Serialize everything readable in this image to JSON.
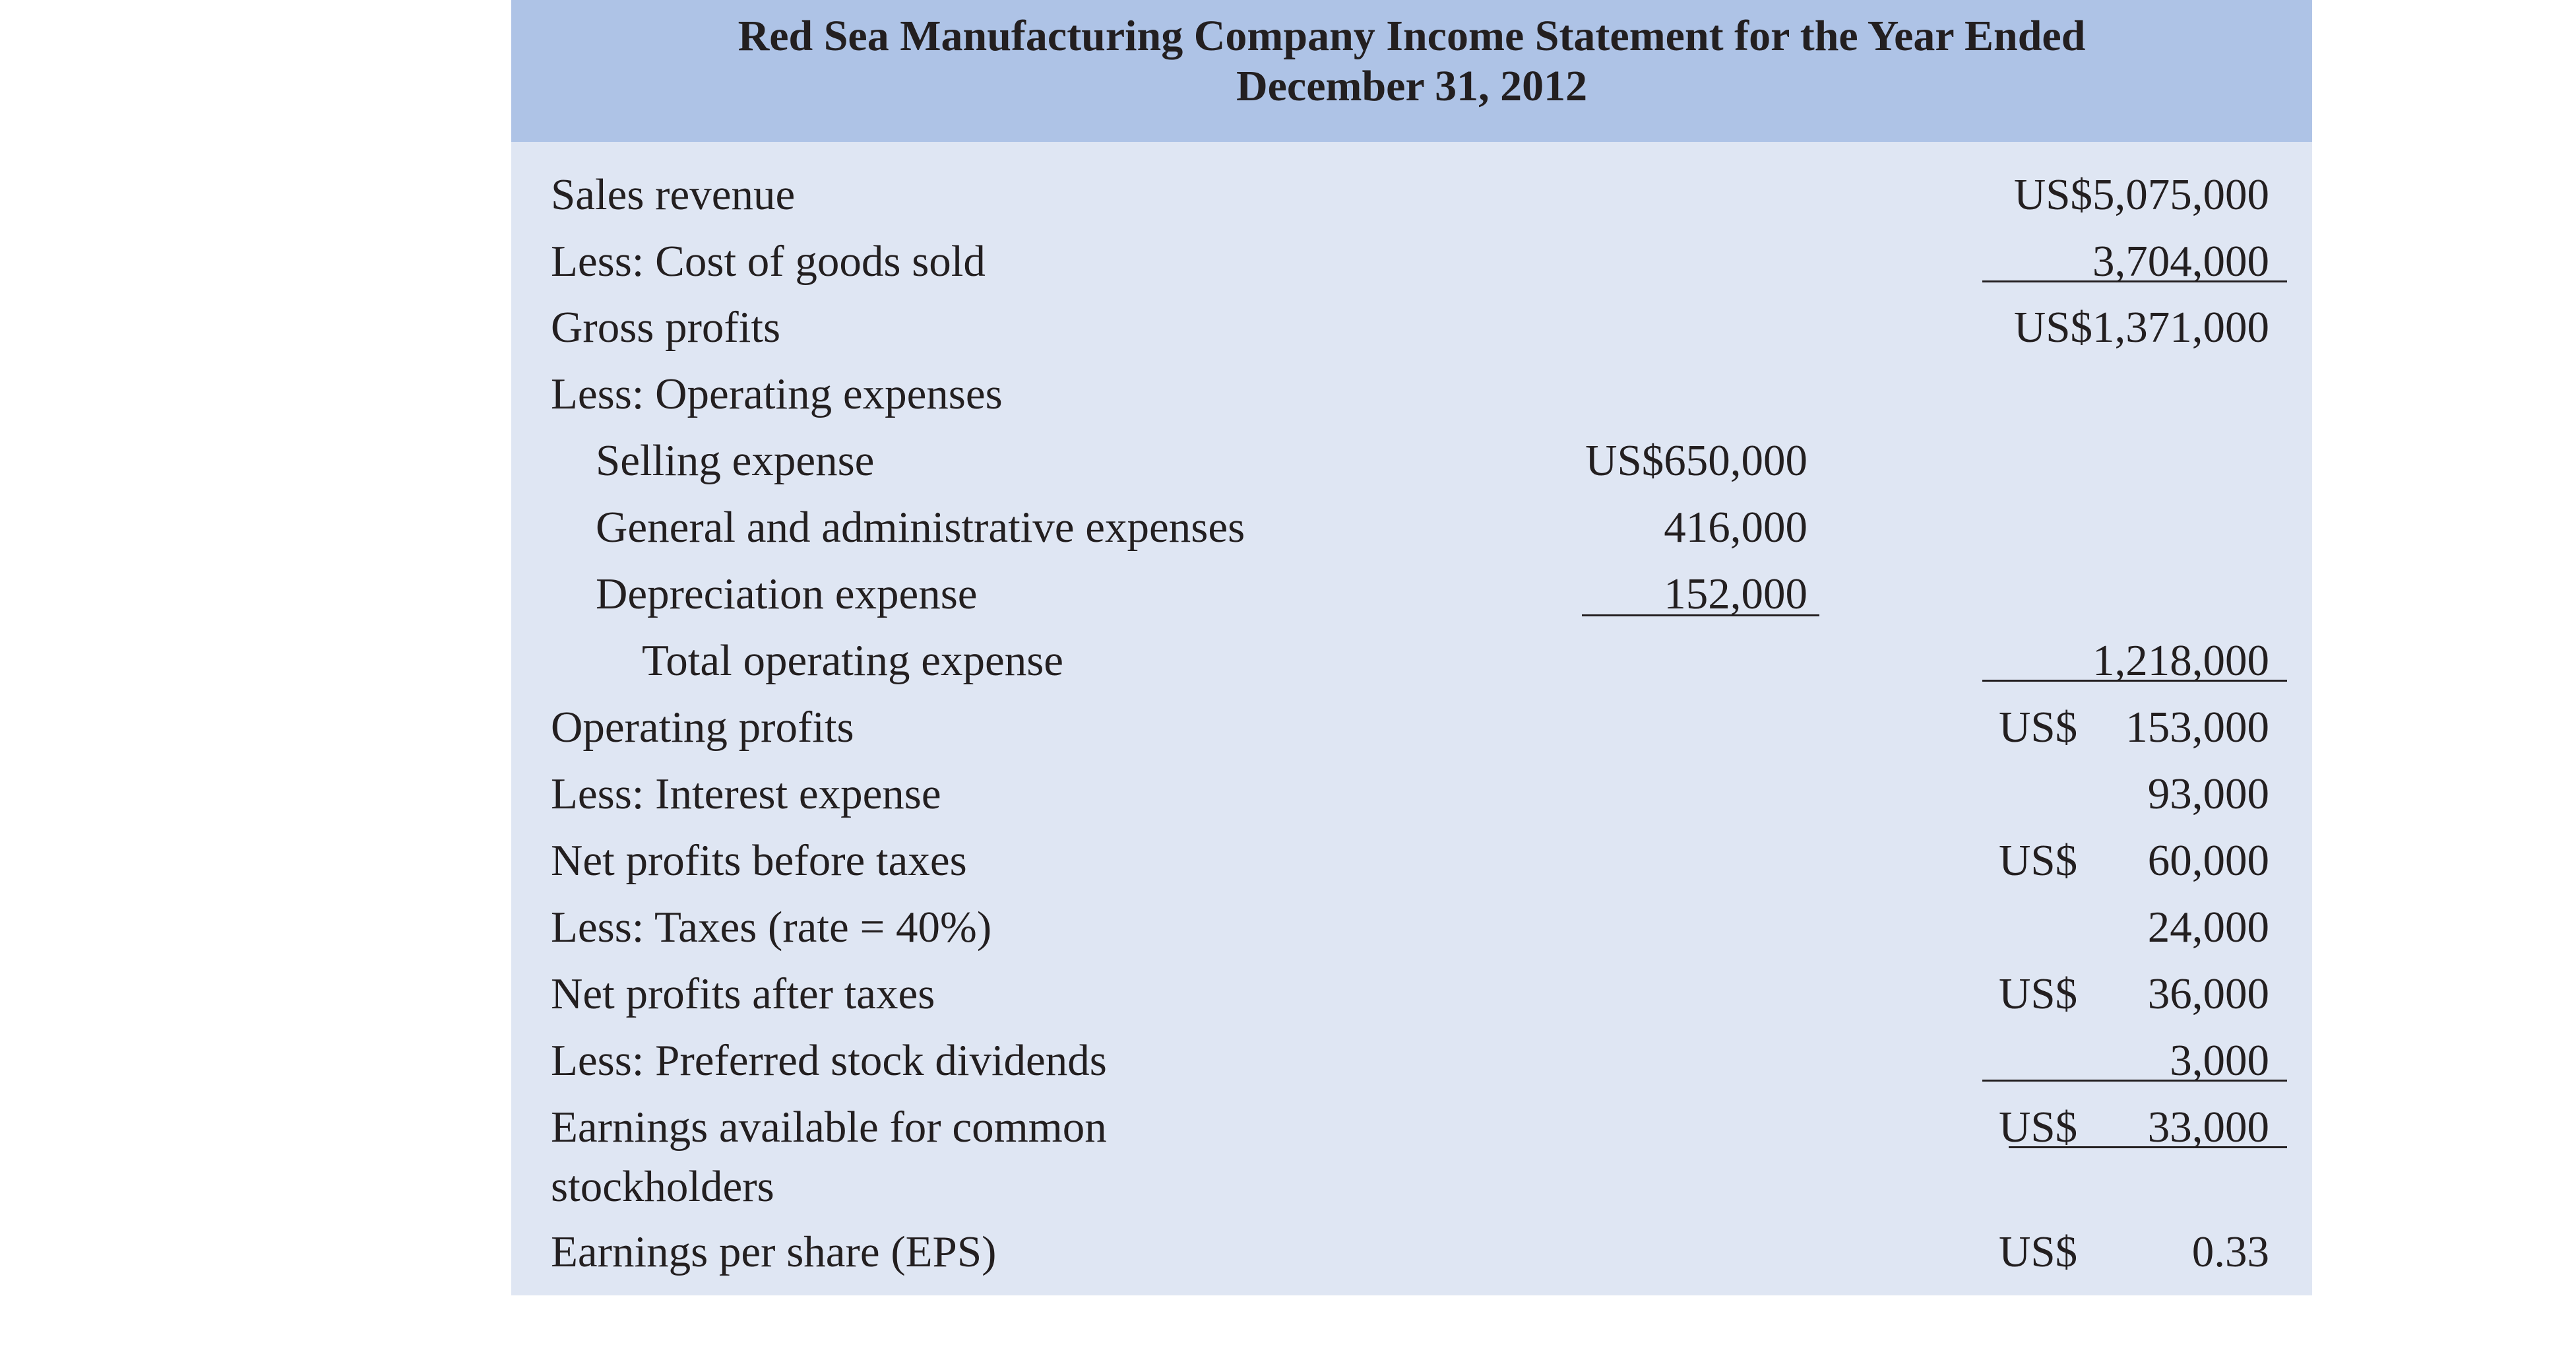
{
  "title_line1": "Red Sea Manufacturing Company Income Statement for the Year Ended",
  "title_line2": "December  31,  2012",
  "rows": [
    {
      "label": "Sales revenue",
      "right_cur": "",
      "right": "US$5,075,000"
    },
    {
      "label": "Less: Cost of goods sold",
      "right_cur": "",
      "right": "3,704,000"
    },
    {
      "label": "Gross  profits",
      "right_cur": "",
      "right": "US$1,371,000"
    },
    {
      "label": "Less: Operating expenses"
    },
    {
      "label": "Selling expense",
      "mid": "US$650,000"
    },
    {
      "label": "General  and  administrative  expenses",
      "mid": "416,000"
    },
    {
      "label": "Depreciation  expense",
      "mid": "152,000"
    },
    {
      "label": "Total operating expense",
      "right_cur": "",
      "right": "1,218,000"
    },
    {
      "label": "Operating profits",
      "right_cur": "US$",
      "right": "153,000"
    },
    {
      "label": "Less: Interest expense",
      "right_cur": "",
      "right": "93,000"
    },
    {
      "label": "Net profits before taxes",
      "right_cur": "US$",
      "right": "60,000"
    },
    {
      "label": "Less: Taxes (rate = 40%)",
      "right_cur": "",
      "right": "24,000"
    },
    {
      "label": "Net profits after taxes",
      "right_cur": "US$",
      "right": "36,000"
    },
    {
      "label": "Less: Preferred stock dividends",
      "right_cur": "",
      "right": "3,000"
    },
    {
      "label": "Earnings available for common stockholders",
      "right_cur": "US$",
      "right": "33,000"
    },
    {
      "label": "Earnings per share (EPS)",
      "right_cur": "US$",
      "right": "0.33"
    }
  ]
}
